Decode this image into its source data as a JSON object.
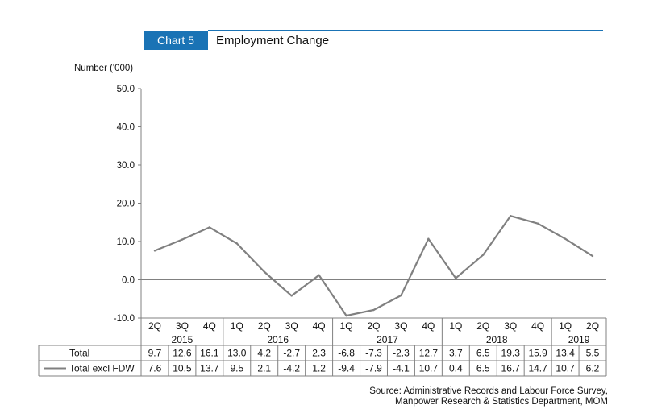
{
  "header": {
    "chart_label": "Chart 5",
    "title": "Employment Change",
    "accent_color": "#1a73b5"
  },
  "source": {
    "line1": "Source: Administrative Records and Labour Force Survey,",
    "line2": "Manpower Research & Statistics Department, MOM"
  },
  "chart_data": {
    "type": "line",
    "title": "Employment Change",
    "ylabel": "Number ('000)",
    "xlabel": "",
    "ylim": [
      -10,
      50
    ],
    "yticks": [
      "-10.0",
      "0.0",
      "10.0",
      "20.0",
      "30.0",
      "40.0",
      "50.0"
    ],
    "categories": [
      "2Q",
      "3Q",
      "4Q",
      "1Q",
      "2Q",
      "3Q",
      "4Q",
      "1Q",
      "2Q",
      "3Q",
      "4Q",
      "1Q",
      "2Q",
      "3Q",
      "4Q",
      "1Q",
      "2Q"
    ],
    "years": [
      {
        "label": "2015",
        "count": 3
      },
      {
        "label": "2016",
        "count": 4
      },
      {
        "label": "2017",
        "count": 4
      },
      {
        "label": "2018",
        "count": 4
      },
      {
        "label": "2019",
        "count": 2
      }
    ],
    "series": [
      {
        "name": "Total",
        "plotted": false,
        "values": [
          9.7,
          12.6,
          16.1,
          13.0,
          4.2,
          -2.7,
          2.3,
          -6.8,
          -7.3,
          -2.3,
          12.7,
          3.7,
          6.5,
          19.3,
          15.9,
          13.4,
          5.5
        ],
        "labels": [
          "9.7",
          "12.6",
          "16.1",
          "13.0",
          "4.2",
          "-2.7",
          "2.3",
          "-6.8",
          "-7.3",
          "-2.3",
          "12.7",
          "3.7",
          "6.5",
          "19.3",
          "15.9",
          "13.4",
          "5.5"
        ]
      },
      {
        "name": "Total excl FDW",
        "plotted": true,
        "color": "#808080",
        "values": [
          7.6,
          10.5,
          13.7,
          9.5,
          2.1,
          -4.2,
          1.2,
          -9.4,
          -7.9,
          -4.1,
          10.7,
          0.4,
          6.5,
          16.7,
          14.7,
          10.7,
          6.2
        ],
        "labels": [
          "7.6",
          "10.5",
          "13.7",
          "9.5",
          "2.1",
          "-4.2",
          "1.2",
          "-9.4",
          "-7.9",
          "-4.1",
          "10.7",
          "0.4",
          "6.5",
          "16.7",
          "14.7",
          "10.7",
          "6.2"
        ]
      }
    ],
    "grid": false,
    "legend": "table-left"
  }
}
